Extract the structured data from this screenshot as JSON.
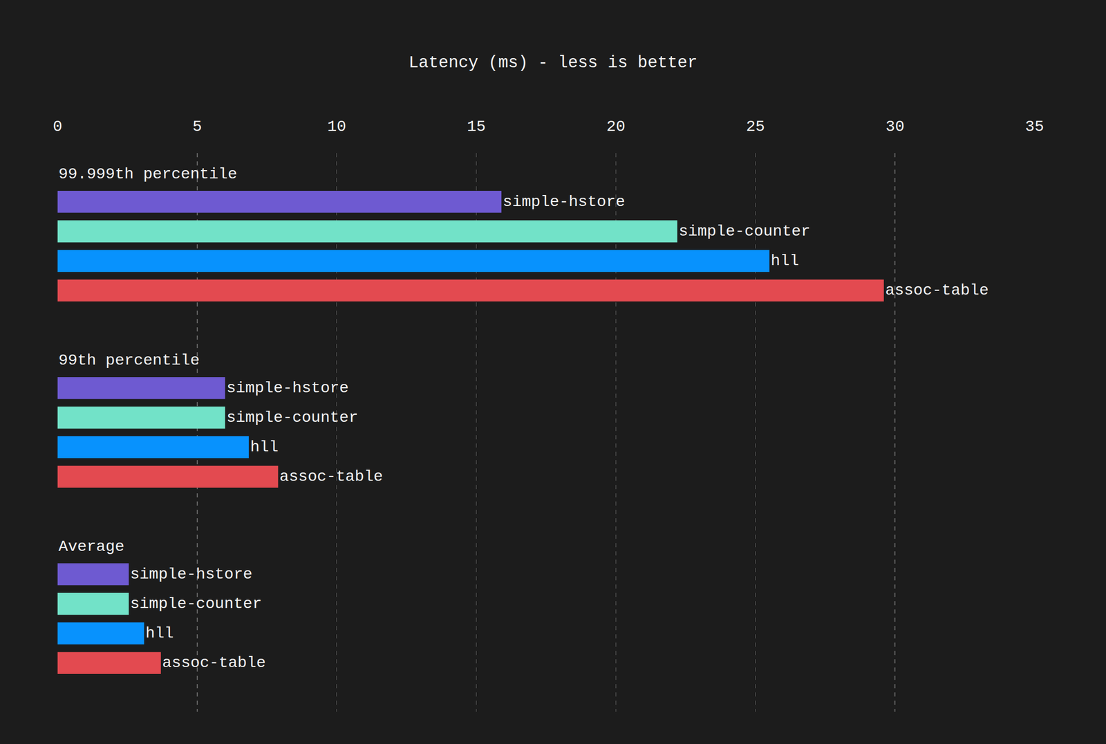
{
  "chart_data": {
    "type": "bar",
    "orientation": "horizontal",
    "title": "Latency (ms) - less is better",
    "categories": [
      "99.999th percentile",
      "99th percentile",
      "Average"
    ],
    "series": [
      {
        "name": "simple-hstore",
        "color": "#6e5ad1",
        "values": [
          15.9,
          6.0,
          2.55
        ]
      },
      {
        "name": "simple-counter",
        "color": "#72e2c8",
        "values": [
          22.2,
          6.0,
          2.55
        ]
      },
      {
        "name": "hll",
        "color": "#0892fd",
        "values": [
          25.5,
          6.85,
          3.1
        ]
      },
      {
        "name": "assoc-table",
        "color": "#e34a50",
        "values": [
          29.6,
          7.9,
          3.7
        ]
      }
    ],
    "xlim": [
      0,
      35
    ],
    "xticks": [
      0,
      5,
      10,
      15,
      20,
      25,
      30,
      35
    ],
    "grid": true
  }
}
